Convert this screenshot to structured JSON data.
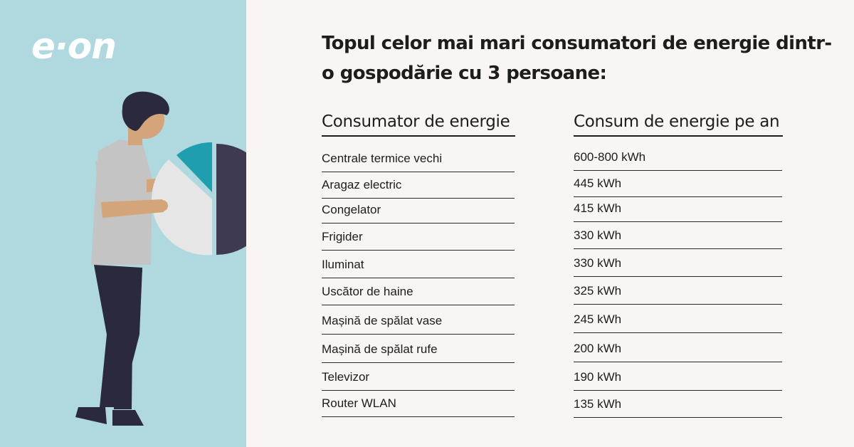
{
  "brand": {
    "logo_text": "e·on"
  },
  "title": "Topul celor mai mari consumatori de energie dintr-o gospodărie cu 3 persoane:",
  "table": {
    "headers": [
      "Consumator de energie",
      "Consum de energie pe an"
    ],
    "rows": [
      {
        "consumer": "Centrale termice vechi",
        "consumption": "600-800 kWh"
      },
      {
        "consumer": "Aragaz electric",
        "consumption": "445 kWh"
      },
      {
        "consumer": "Congelator",
        "consumption": "415 kWh"
      },
      {
        "consumer": "Frigider",
        "consumption": "330 kWh"
      },
      {
        "consumer": "Iluminat",
        "consumption": "330 kWh"
      },
      {
        "consumer": "Uscător de haine",
        "consumption": "325 kWh"
      },
      {
        "consumer": "Mașină de spălat vase",
        "consumption": "245 kWh"
      },
      {
        "consumer": "Mașină de spălat rufe",
        "consumption": "200 kWh"
      },
      {
        "consumer": "Televizor",
        "consumption": "190 kWh"
      },
      {
        "consumer": "Router WLAN",
        "consumption": "135 kWh"
      }
    ]
  },
  "colors": {
    "left_panel": "#b0d9df",
    "background": "#f8f5f2",
    "pie_dark": "#3e3a52",
    "pie_light": "#e6e6e6",
    "pie_teal": "#1f9eb0",
    "text": "#1d1d1b"
  },
  "illustration": {
    "icon": "person-holding-pie-chart-icon"
  }
}
